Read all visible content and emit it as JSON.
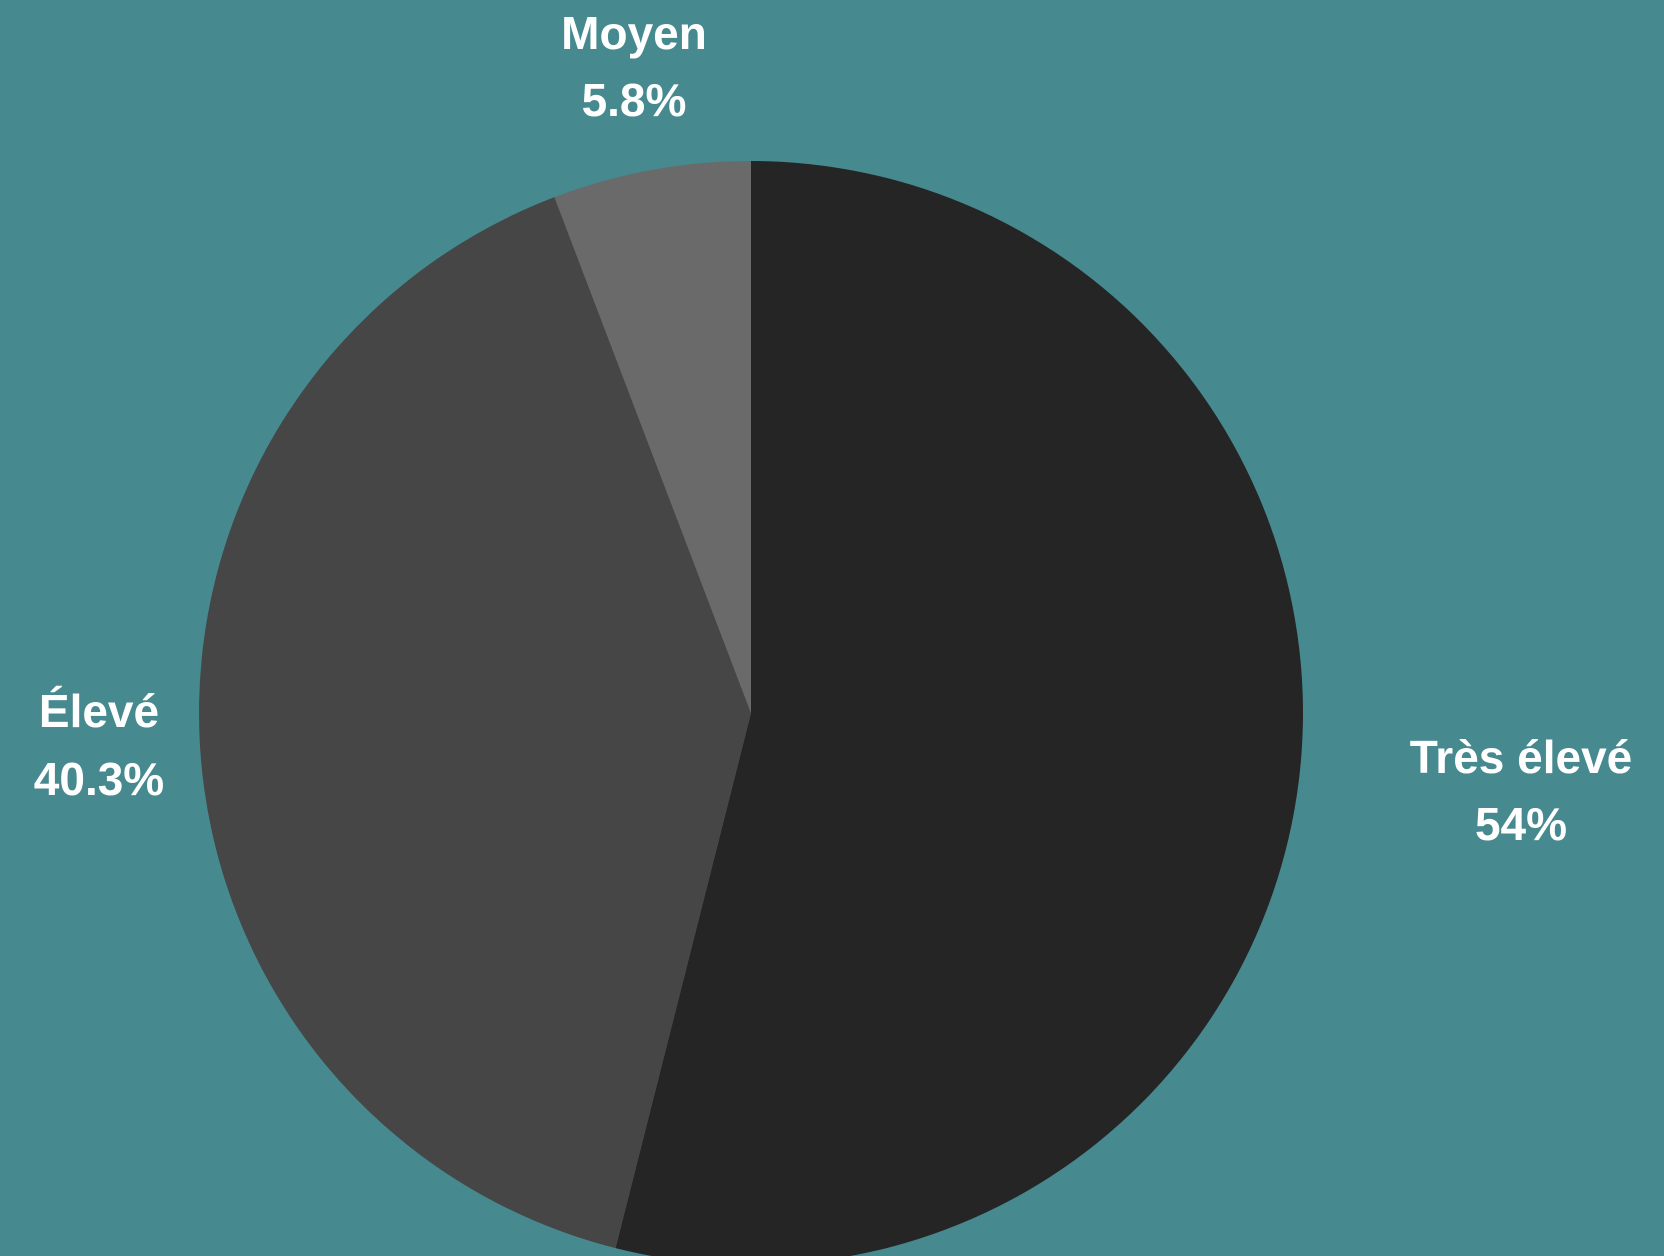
{
  "chart_data": {
    "type": "pie",
    "categories": [
      "Très élevé",
      "Élevé",
      "Moyen"
    ],
    "values": [
      54,
      40.3,
      5.8
    ],
    "value_labels": [
      "54%",
      "40.3%",
      "5.8%"
    ],
    "colors": [
      "#252525",
      "#464646",
      "#6a6a6a"
    ],
    "background": "#468a90"
  }
}
